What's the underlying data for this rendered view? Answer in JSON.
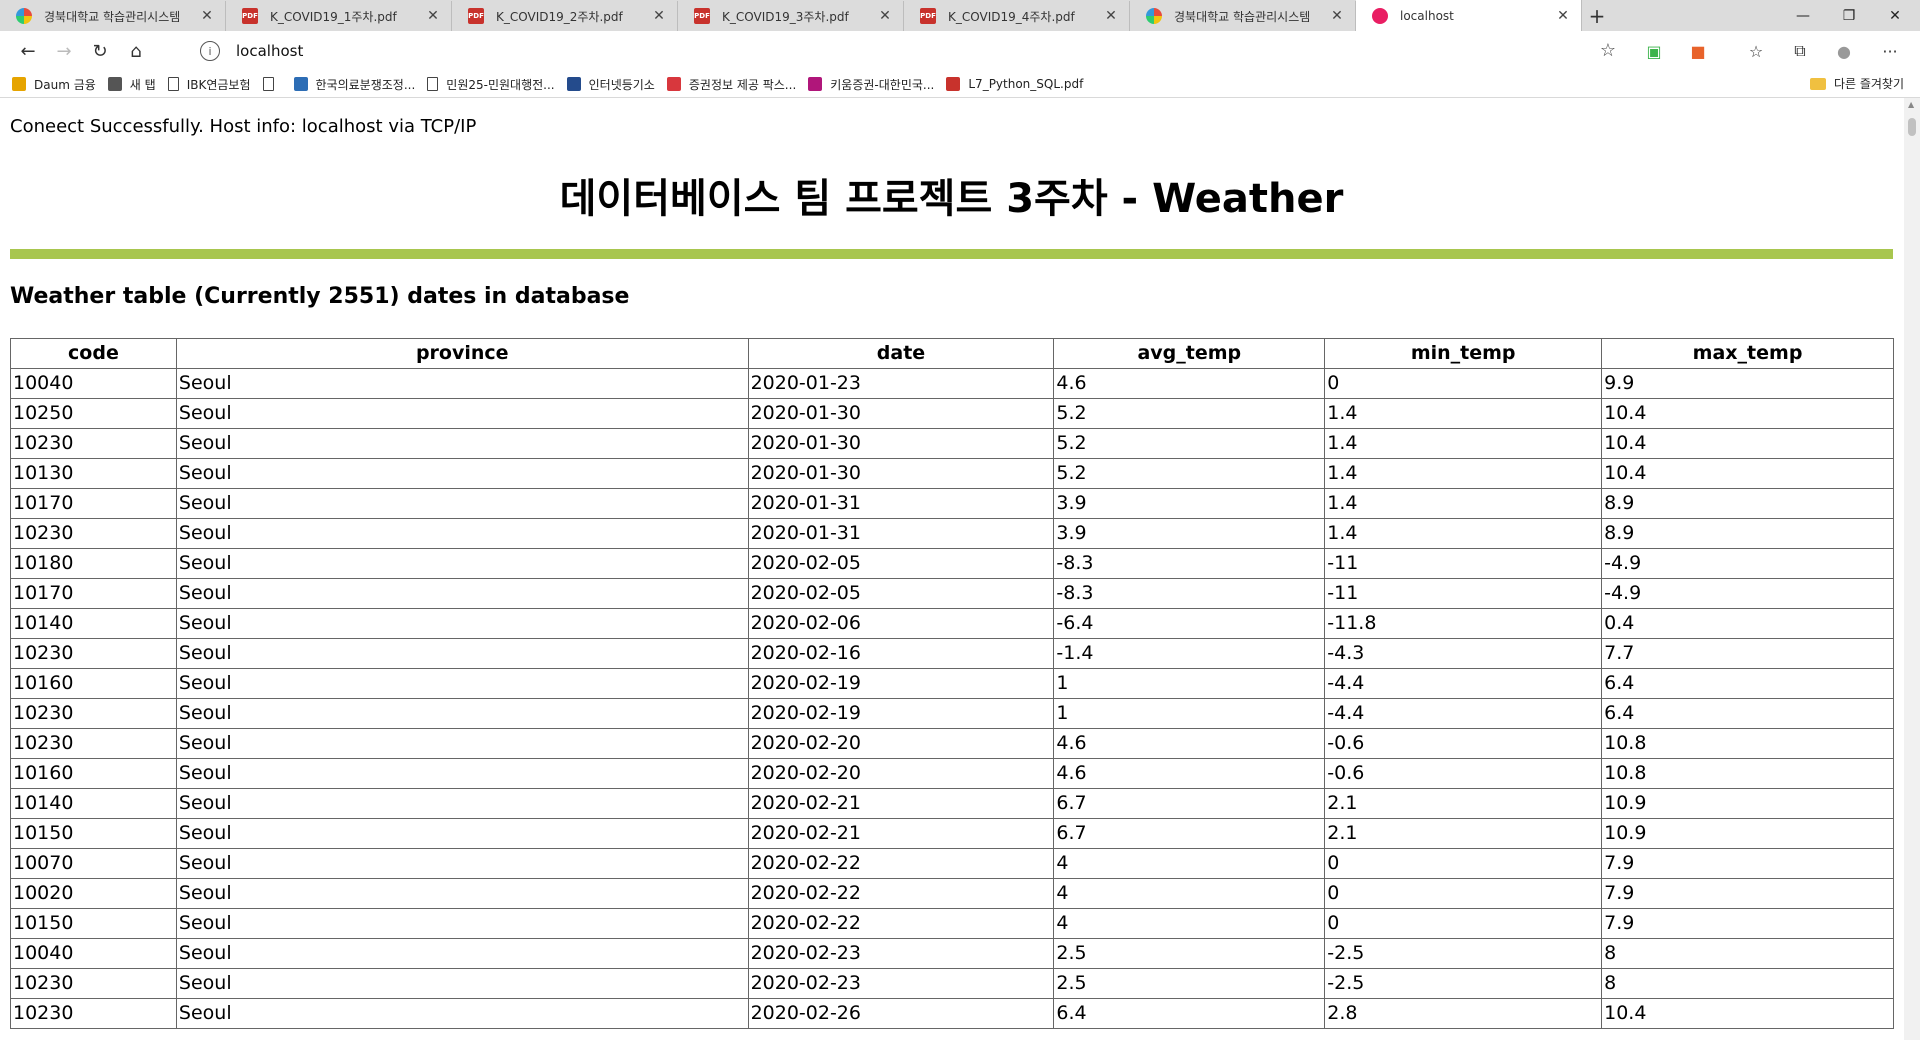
{
  "browser": {
    "tabs": [
      {
        "title": "경북대학교 학습관리시스템",
        "icon": "knu-logo-icon",
        "active": false
      },
      {
        "title": "K_COVID19_1주차.pdf",
        "icon": "pdf-icon",
        "active": false
      },
      {
        "title": "K_COVID19_2주차.pdf",
        "icon": "pdf-icon",
        "active": false
      },
      {
        "title": "K_COVID19_3주차.pdf",
        "icon": "pdf-icon",
        "active": false
      },
      {
        "title": "K_COVID19_4주차.pdf",
        "icon": "pdf-icon",
        "active": false
      },
      {
        "title": "경북대학교 학습관리시스템",
        "icon": "knu-logo-icon",
        "active": false
      },
      {
        "title": "localhost",
        "icon": "localhost-icon",
        "active": true
      }
    ],
    "address": "localhost",
    "bookmarks": [
      {
        "label": "Daum 금융",
        "icon": "daum-icon"
      },
      {
        "label": "새 탭",
        "icon": "new-tab-icon"
      },
      {
        "label": "IBK연금보험",
        "icon": "page-icon"
      },
      {
        "label": "",
        "icon": "page-icon"
      },
      {
        "label": "한국의료분쟁조정...",
        "icon": "agency-icon"
      },
      {
        "label": "민원25-민원대행전...",
        "icon": "page-icon"
      },
      {
        "label": "인터넷등기소",
        "icon": "registry-icon"
      },
      {
        "label": "증권정보 제공 팍스...",
        "icon": "paxnet-icon"
      },
      {
        "label": "키움증권-대한민국...",
        "icon": "kiwoom-icon"
      },
      {
        "label": "L7_Python_SQL.pdf",
        "icon": "pdf-icon"
      }
    ],
    "other_bookmarks": "다른 즐겨찾기"
  },
  "page": {
    "connection": "Coneect Successfully. Host info: localhost via TCP/IP",
    "title": "데이터베이스 팀 프로젝트 3주차 - Weather",
    "subtitle": "Weather table (Currently 2551) dates in database",
    "divider_color": "#a8c64e"
  },
  "table": {
    "columns": [
      "code",
      "province",
      "date",
      "avg_temp",
      "min_temp",
      "max_temp"
    ],
    "rows": [
      [
        "10040",
        "Seoul",
        "2020-01-23",
        "4.6",
        "0",
        "9.9"
      ],
      [
        "10250",
        "Seoul",
        "2020-01-30",
        "5.2",
        "1.4",
        "10.4"
      ],
      [
        "10230",
        "Seoul",
        "2020-01-30",
        "5.2",
        "1.4",
        "10.4"
      ],
      [
        "10130",
        "Seoul",
        "2020-01-30",
        "5.2",
        "1.4",
        "10.4"
      ],
      [
        "10170",
        "Seoul",
        "2020-01-31",
        "3.9",
        "1.4",
        "8.9"
      ],
      [
        "10230",
        "Seoul",
        "2020-01-31",
        "3.9",
        "1.4",
        "8.9"
      ],
      [
        "10180",
        "Seoul",
        "2020-02-05",
        "-8.3",
        "-11",
        "-4.9"
      ],
      [
        "10170",
        "Seoul",
        "2020-02-05",
        "-8.3",
        "-11",
        "-4.9"
      ],
      [
        "10140",
        "Seoul",
        "2020-02-06",
        "-6.4",
        "-11.8",
        "0.4"
      ],
      [
        "10230",
        "Seoul",
        "2020-02-16",
        "-1.4",
        "-4.3",
        "7.7"
      ],
      [
        "10160",
        "Seoul",
        "2020-02-19",
        "1",
        "-4.4",
        "6.4"
      ],
      [
        "10230",
        "Seoul",
        "2020-02-19",
        "1",
        "-4.4",
        "6.4"
      ],
      [
        "10230",
        "Seoul",
        "2020-02-20",
        "4.6",
        "-0.6",
        "10.8"
      ],
      [
        "10160",
        "Seoul",
        "2020-02-20",
        "4.6",
        "-0.6",
        "10.8"
      ],
      [
        "10140",
        "Seoul",
        "2020-02-21",
        "6.7",
        "2.1",
        "10.9"
      ],
      [
        "10150",
        "Seoul",
        "2020-02-21",
        "6.7",
        "2.1",
        "10.9"
      ],
      [
        "10070",
        "Seoul",
        "2020-02-22",
        "4",
        "0",
        "7.9"
      ],
      [
        "10020",
        "Seoul",
        "2020-02-22",
        "4",
        "0",
        "7.9"
      ],
      [
        "10150",
        "Seoul",
        "2020-02-22",
        "4",
        "0",
        "7.9"
      ],
      [
        "10040",
        "Seoul",
        "2020-02-23",
        "2.5",
        "-2.5",
        "8"
      ],
      [
        "10230",
        "Seoul",
        "2020-02-23",
        "2.5",
        "-2.5",
        "8"
      ],
      [
        "10230",
        "Seoul",
        "2020-02-26",
        "6.4",
        "2.8",
        "10.4"
      ]
    ]
  }
}
